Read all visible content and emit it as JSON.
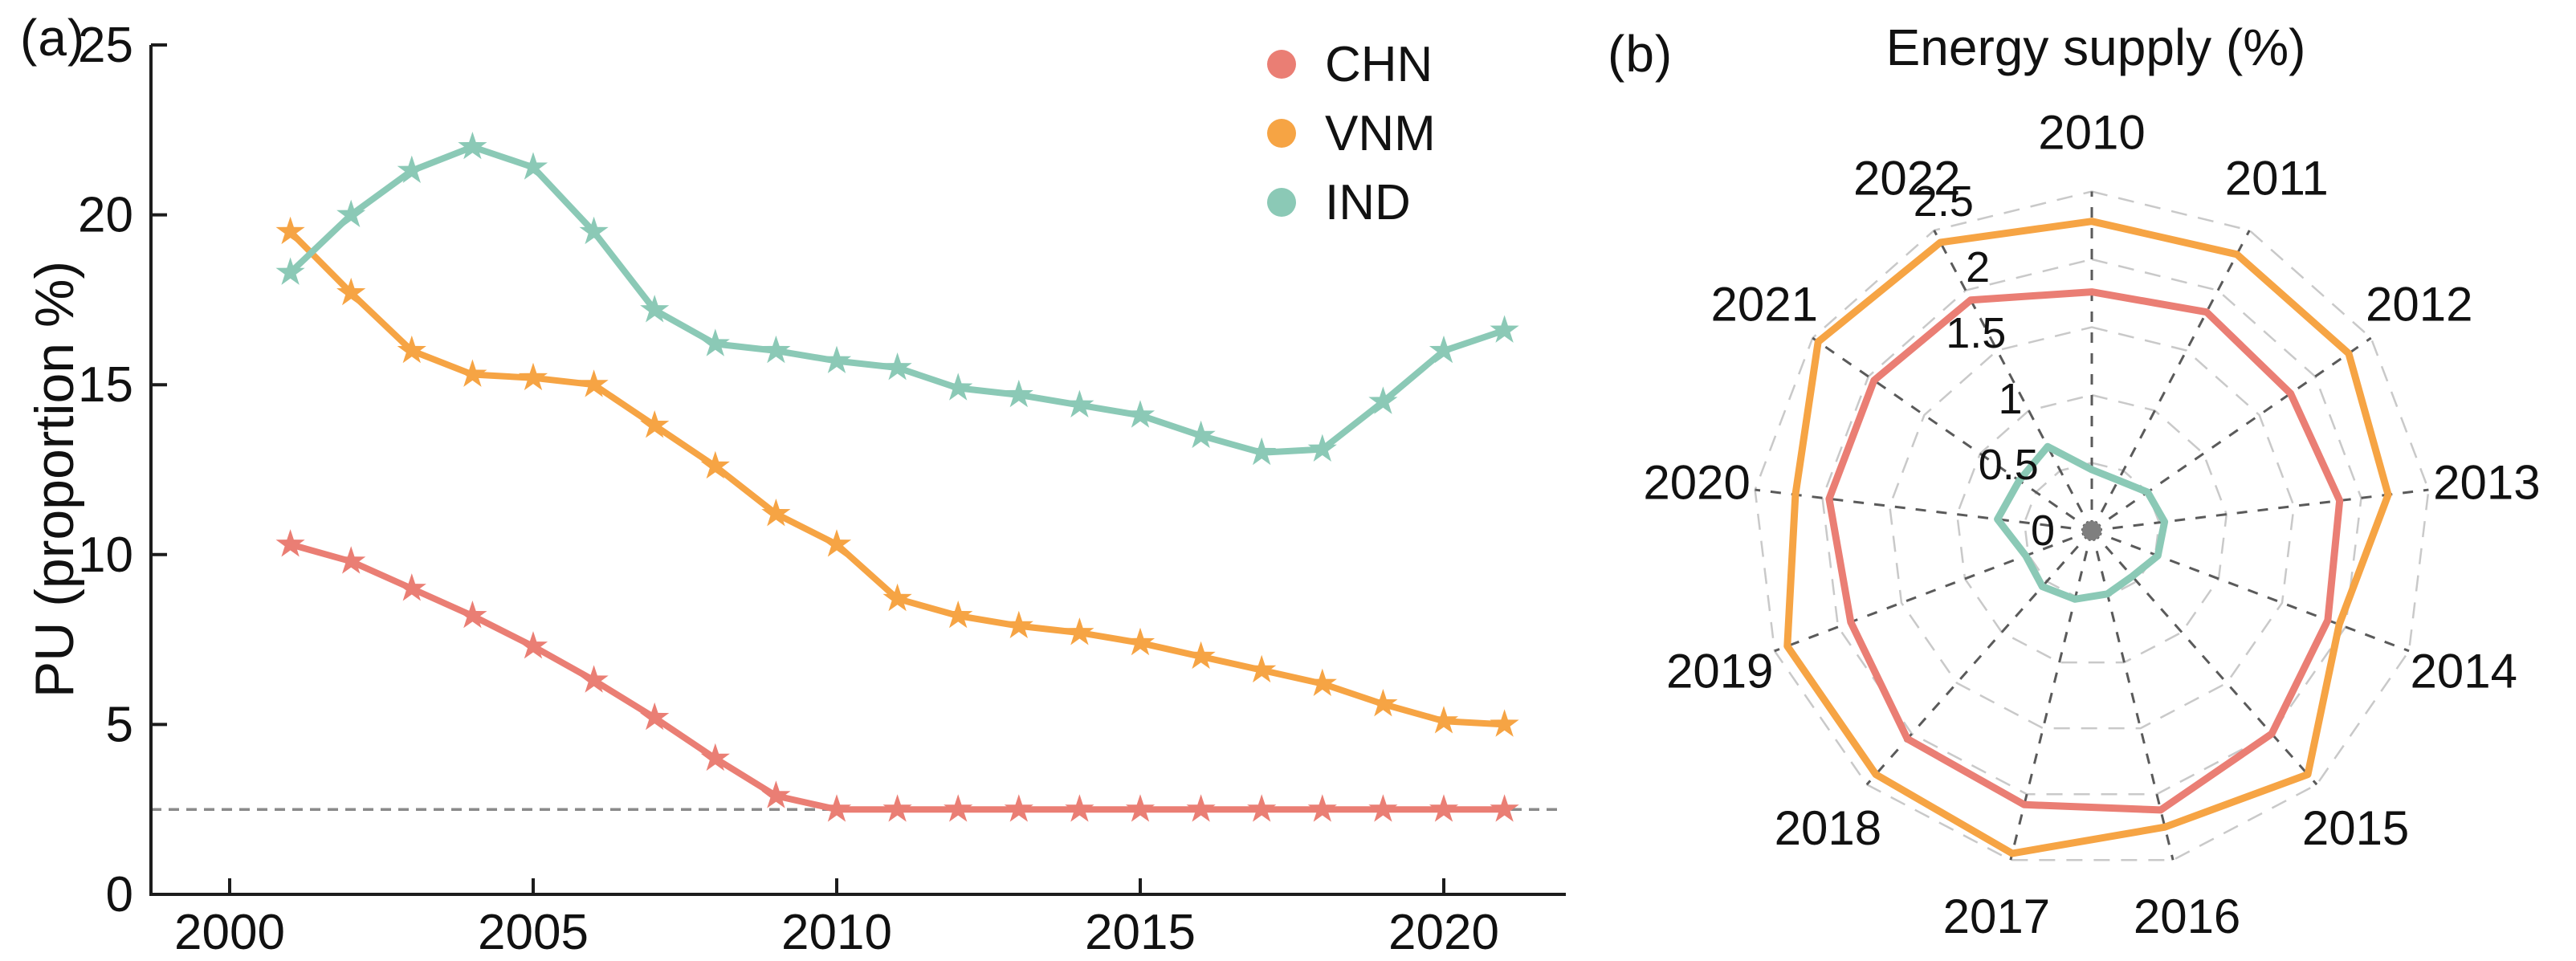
{
  "figure_type": "two-panel scientific figure",
  "panel_a_label": "(a)",
  "panel_b_label": "(b)",
  "colors": {
    "chn": "#EA7E74",
    "vnm": "#F6A444",
    "ind": "#8BC9B6",
    "axis": "#1c1c1c",
    "threshold_dash": "#8a8a8a",
    "radar_spoke": "#5a5a5a",
    "radar_ring": "#c9c9c9",
    "radar_center_dot": "#7f7f7f"
  },
  "chart_data": [
    {
      "type": "line",
      "panel_label": "(a)",
      "title": "",
      "xlabel": "",
      "ylabel": "PU (proportion %)",
      "x": [
        2001,
        2002,
        2003,
        2004,
        2005,
        2006,
        2007,
        2008,
        2009,
        2010,
        2011,
        2012,
        2013,
        2014,
        2015,
        2016,
        2017,
        2018,
        2019,
        2020,
        2021
      ],
      "xticks": [
        2000,
        2005,
        2010,
        2015,
        2020
      ],
      "yticks": [
        0,
        5,
        10,
        15,
        20,
        25
      ],
      "xlim": [
        1998.7,
        2023
      ],
      "ylim": [
        0,
        25
      ],
      "threshold_line_y": 2.5,
      "marker": "star",
      "grid": false,
      "legend_position": "upper right inside",
      "series": [
        {
          "name": "CHN",
          "color": "#EA7E74",
          "values": [
            10.3,
            9.8,
            9.0,
            8.2,
            7.3,
            6.3,
            5.2,
            4.0,
            2.9,
            2.5,
            2.5,
            2.5,
            2.5,
            2.5,
            2.5,
            2.5,
            2.5,
            2.5,
            2.5,
            2.5,
            2.5
          ]
        },
        {
          "name": "VNM",
          "color": "#F6A444",
          "values": [
            19.5,
            17.7,
            16.0,
            15.3,
            15.2,
            15.0,
            13.8,
            12.6,
            11.2,
            10.3,
            8.7,
            8.2,
            7.9,
            7.7,
            7.4,
            7.0,
            6.6,
            6.2,
            5.6,
            5.1,
            5.0
          ]
        },
        {
          "name": "IND",
          "color": "#8BC9B6",
          "values": [
            18.3,
            20.0,
            21.3,
            22.0,
            21.4,
            19.5,
            17.2,
            16.2,
            16.0,
            15.7,
            15.5,
            14.9,
            14.7,
            14.4,
            14.1,
            13.5,
            13.0,
            13.1,
            14.5,
            16.0,
            16.6
          ]
        }
      ]
    },
    {
      "type": "radar",
      "panel_label": "(b)",
      "title": "Energy supply (%)",
      "categories": [
        "2010",
        "2011",
        "2012",
        "2013",
        "2014",
        "2015",
        "2016",
        "2017",
        "2018",
        "2019",
        "2020",
        "2021",
        "2022"
      ],
      "rticks": [
        0,
        0.5,
        1,
        1.5,
        2,
        2.5
      ],
      "rlim": [
        0,
        2.5
      ],
      "grid": true,
      "series": [
        {
          "name": "IND",
          "color": "#8BC9B6",
          "values": [
            0.45,
            0.42,
            0.5,
            0.54,
            0.52,
            0.45,
            0.48,
            0.52,
            0.55,
            0.52,
            0.7,
            0.65,
            0.7
          ]
        },
        {
          "name": "CHN",
          "color": "#EA7E74",
          "values": [
            1.76,
            1.82,
            1.78,
            1.84,
            1.86,
            2.0,
            2.12,
            2.08,
            2.05,
            1.9,
            1.95,
            1.95,
            1.92
          ]
        },
        {
          "name": "VNM",
          "color": "#F6A444",
          "values": [
            2.28,
            2.3,
            2.3,
            2.2,
            1.95,
            2.4,
            2.25,
            2.45,
            2.4,
            2.4,
            2.2,
            2.45,
            2.4
          ]
        }
      ]
    }
  ]
}
